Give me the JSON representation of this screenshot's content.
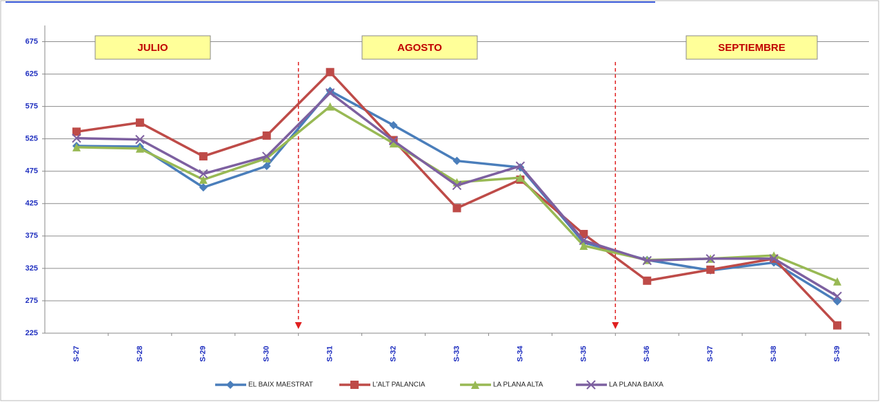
{
  "chart_data": {
    "type": "line",
    "categories": [
      "S-27",
      "S-28",
      "S-29",
      "S-30",
      "S-31",
      "S-32",
      "S-33",
      "S-34",
      "S-35",
      "S-36",
      "S-37",
      "S-38",
      "S-39"
    ],
    "series": [
      {
        "name": "EL BAIX MAESTRAT",
        "color": "#4a7ebb",
        "marker": "diamond",
        "values": [
          514,
          513,
          450,
          483,
          599,
          546,
          491,
          481,
          365,
          338,
          322,
          334,
          274
        ]
      },
      {
        "name": "L'ALT PALANCIA",
        "color": "#be4b48",
        "marker": "square",
        "values": [
          536,
          550,
          498,
          530,
          628,
          523,
          418,
          462,
          378,
          306,
          323,
          340,
          237
        ]
      },
      {
        "name": "LA PLANA ALTA",
        "color": "#98b954",
        "marker": "triangle",
        "values": [
          512,
          510,
          462,
          495,
          575,
          518,
          458,
          465,
          360,
          338,
          340,
          345,
          305
        ]
      },
      {
        "name": "LA PLANA BAIXA",
        "color": "#7d60a0",
        "marker": "x",
        "values": [
          526,
          524,
          471,
          498,
          596,
          522,
          453,
          483,
          368,
          337,
          340,
          340,
          282
        ]
      }
    ],
    "ylim": [
      225,
      700
    ],
    "yticks": [
      225,
      275,
      325,
      375,
      425,
      475,
      525,
      575,
      625,
      675
    ],
    "grid": true,
    "annotations": [
      "JULIO",
      "AGOSTO",
      "SEPTIEMBRE"
    ]
  }
}
